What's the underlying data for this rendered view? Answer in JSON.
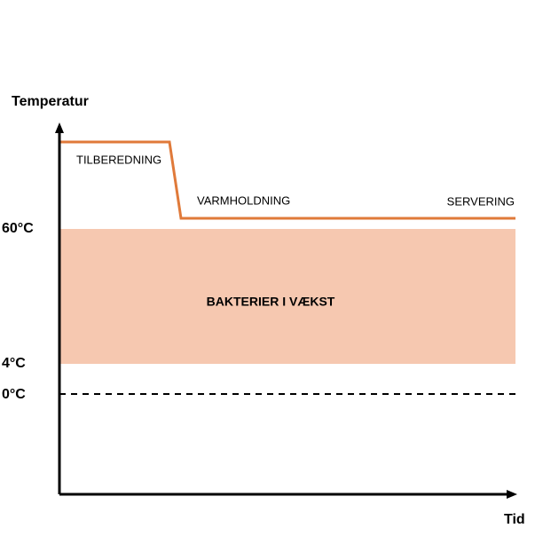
{
  "axes": {
    "y_label": "Temperatur",
    "x_label": "Tid"
  },
  "levels": [
    "60°C",
    "4°C",
    "0°C"
  ],
  "zone": {
    "label": "BAKTERIER I VÆKST"
  },
  "phases": [
    "TILBEREDNING",
    "VARMHOLDNING",
    "SERVERING"
  ]
}
